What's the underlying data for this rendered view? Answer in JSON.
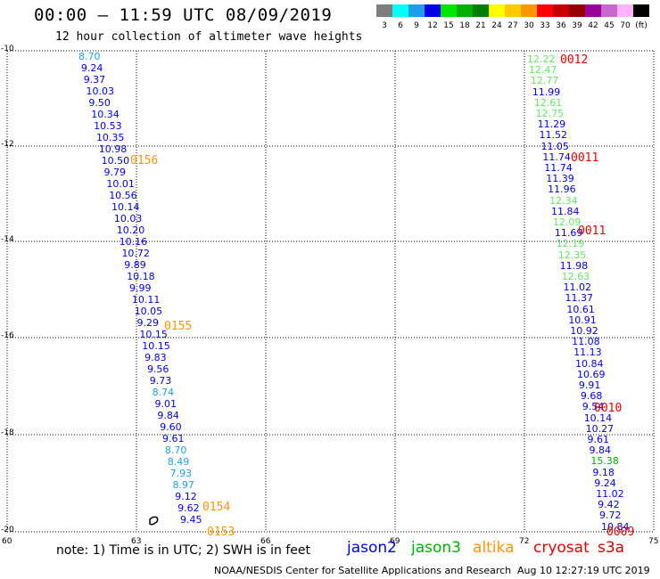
{
  "title": "00:00 — 11:59 UTC 08/09/2019",
  "subtitle": "12 hour collection of altimeter wave heights",
  "color_scale": {
    "labels": [
      "3",
      "6",
      "9",
      "12",
      "15",
      "18",
      "21",
      "24",
      "27",
      "30",
      "33",
      "36",
      "39",
      "42",
      "45",
      "70",
      "(ft)"
    ],
    "colors": [
      "#7f7f7f",
      "#00ffff",
      "#1e9ee8",
      "#0000e6",
      "#00e600",
      "#00b000",
      "#008000",
      "#ffff00",
      "#ffc800",
      "#ff9600",
      "#ff0000",
      "#c80000",
      "#960000",
      "#9b009b",
      "#cc66cc",
      "#ffb4ff",
      "#000000"
    ]
  },
  "axes": {
    "y_labels": [
      "-10",
      "-12",
      "-14",
      "-16",
      "-18",
      "-20"
    ],
    "x_labels": [
      "60",
      "63",
      "66",
      "69",
      "72",
      "75"
    ]
  },
  "track_west": [
    {
      "v": "8.70",
      "c": "#1e9ee8"
    },
    {
      "v": "9.24",
      "c": "#0000e6"
    },
    {
      "v": "9.37",
      "c": "#0000e6"
    },
    {
      "v": "10.03",
      "c": "#0000e6"
    },
    {
      "v": "9.50",
      "c": "#0000e6"
    },
    {
      "v": "10.34",
      "c": "#0000e6"
    },
    {
      "v": "10.53",
      "c": "#0000e6"
    },
    {
      "v": "10.35",
      "c": "#0000e6"
    },
    {
      "v": "10.98",
      "c": "#0000e6"
    },
    {
      "v": "10.50",
      "c": "#0000e6"
    },
    {
      "v": "9.79",
      "c": "#0000e6"
    },
    {
      "v": "10.01",
      "c": "#0000e6"
    },
    {
      "v": "10.56",
      "c": "#0000e6"
    },
    {
      "v": "10.14",
      "c": "#0000e6"
    },
    {
      "v": "10.03",
      "c": "#0000e6"
    },
    {
      "v": "10.20",
      "c": "#0000e6"
    },
    {
      "v": "10.16",
      "c": "#0000e6"
    },
    {
      "v": "10.72",
      "c": "#0000e6"
    },
    {
      "v": "9.89",
      "c": "#0000e6"
    },
    {
      "v": "10.18",
      "c": "#0000e6"
    },
    {
      "v": "9.99",
      "c": "#0000e6"
    },
    {
      "v": "10.11",
      "c": "#0000e6"
    },
    {
      "v": "10.05",
      "c": "#0000e6"
    },
    {
      "v": "9.29",
      "c": "#0000e6"
    },
    {
      "v": "10.15",
      "c": "#0000e6"
    },
    {
      "v": "10.15",
      "c": "#0000e6"
    },
    {
      "v": "9.83",
      "c": "#0000e6"
    },
    {
      "v": "9.56",
      "c": "#0000e6"
    },
    {
      "v": "9.73",
      "c": "#0000e6"
    },
    {
      "v": "8.74",
      "c": "#1e9ee8"
    },
    {
      "v": "9.01",
      "c": "#0000e6"
    },
    {
      "v": "9.84",
      "c": "#0000e6"
    },
    {
      "v": "9.60",
      "c": "#0000e6"
    },
    {
      "v": "9.61",
      "c": "#0000e6"
    },
    {
      "v": "8.70",
      "c": "#1e9ee8"
    },
    {
      "v": "8.49",
      "c": "#1e9ee8"
    },
    {
      "v": "7.93",
      "c": "#1e9ee8"
    },
    {
      "v": "8.97",
      "c": "#1e9ee8"
    },
    {
      "v": "9.12",
      "c": "#0000e6"
    },
    {
      "v": "9.62",
      "c": "#0000e6"
    },
    {
      "v": "9.45",
      "c": "#0000e6"
    }
  ],
  "track_east": [
    {
      "v": "12.22",
      "c": "#66e666"
    },
    {
      "v": "12.47",
      "c": "#66e666"
    },
    {
      "v": "12.77",
      "c": "#66e666"
    },
    {
      "v": "11.99",
      "c": "#0000e6"
    },
    {
      "v": "12.61",
      "c": "#66e666"
    },
    {
      "v": "12.75",
      "c": "#66e666"
    },
    {
      "v": "11.29",
      "c": "#0000e6"
    },
    {
      "v": "11.52",
      "c": "#0000e6"
    },
    {
      "v": "11.05",
      "c": "#0000e6"
    },
    {
      "v": "11.74",
      "c": "#0000e6"
    },
    {
      "v": "11.74",
      "c": "#0000e6"
    },
    {
      "v": "11.39",
      "c": "#0000e6"
    },
    {
      "v": "11.96",
      "c": "#0000e6"
    },
    {
      "v": "12.34",
      "c": "#66e666"
    },
    {
      "v": "11.84",
      "c": "#0000e6"
    },
    {
      "v": "12.09",
      "c": "#66e666"
    },
    {
      "v": "11.69",
      "c": "#0000e6"
    },
    {
      "v": "12.19",
      "c": "#66e666"
    },
    {
      "v": "12.35",
      "c": "#66e666"
    },
    {
      "v": "11.98",
      "c": "#0000e6"
    },
    {
      "v": "12.63",
      "c": "#66e666"
    },
    {
      "v": "11.02",
      "c": "#0000e6"
    },
    {
      "v": "11.37",
      "c": "#0000e6"
    },
    {
      "v": "10.61",
      "c": "#0000e6"
    },
    {
      "v": "10.91",
      "c": "#0000e6"
    },
    {
      "v": "10.92",
      "c": "#0000e6"
    },
    {
      "v": "11.08",
      "c": "#0000e6"
    },
    {
      "v": "11.13",
      "c": "#0000e6"
    },
    {
      "v": "10.84",
      "c": "#0000e6"
    },
    {
      "v": "10.69",
      "c": "#0000e6"
    },
    {
      "v": "9.91",
      "c": "#0000e6"
    },
    {
      "v": "9.68",
      "c": "#0000e6"
    },
    {
      "v": "9.54",
      "c": "#0000e6"
    },
    {
      "v": "10.14",
      "c": "#0000e6"
    },
    {
      "v": "10.27",
      "c": "#0000e6"
    },
    {
      "v": "9.61",
      "c": "#0000e6"
    },
    {
      "v": "9.84",
      "c": "#0000e6"
    },
    {
      "v": "15.38",
      "c": "#00b000"
    },
    {
      "v": "9.18",
      "c": "#0000e6"
    },
    {
      "v": "9.24",
      "c": "#0000e6"
    },
    {
      "v": "11.02",
      "c": "#0000e6"
    },
    {
      "v": "9.42",
      "c": "#0000e6"
    },
    {
      "v": "9.72",
      "c": "#0000e6"
    },
    {
      "v": "10.84",
      "c": "#0000e6"
    }
  ],
  "time_labels": [
    {
      "t": "0156",
      "c": "#ff9600"
    },
    {
      "t": "0155",
      "c": "#ff9600"
    },
    {
      "t": "0154",
      "c": "#ff9600"
    },
    {
      "t": "0153",
      "c": "#ff9600"
    },
    {
      "t": "0012",
      "c": "#e60000"
    },
    {
      "t": "0011",
      "c": "#e60000"
    },
    {
      "t": "0011",
      "c": "#e60000"
    },
    {
      "t": "0010",
      "c": "#e60000"
    },
    {
      "t": "0009",
      "c": "#e60000"
    }
  ],
  "note": "note: 1) Time is in UTC; 2) SWH is in feet",
  "legend": [
    {
      "name": "jason2",
      "color": "#0000e6"
    },
    {
      "name": "jason3",
      "color": "#00b000"
    },
    {
      "name": "altika",
      "color": "#ff9600"
    },
    {
      "name": "cryosat",
      "color": "#e60000"
    },
    {
      "name": "s3a",
      "color": "#c80000"
    }
  ],
  "footer_left": "NOAA/NESDIS Center for Satellite Applications and Research",
  "footer_right": "Aug 10 12:27:19 UTC 2019"
}
